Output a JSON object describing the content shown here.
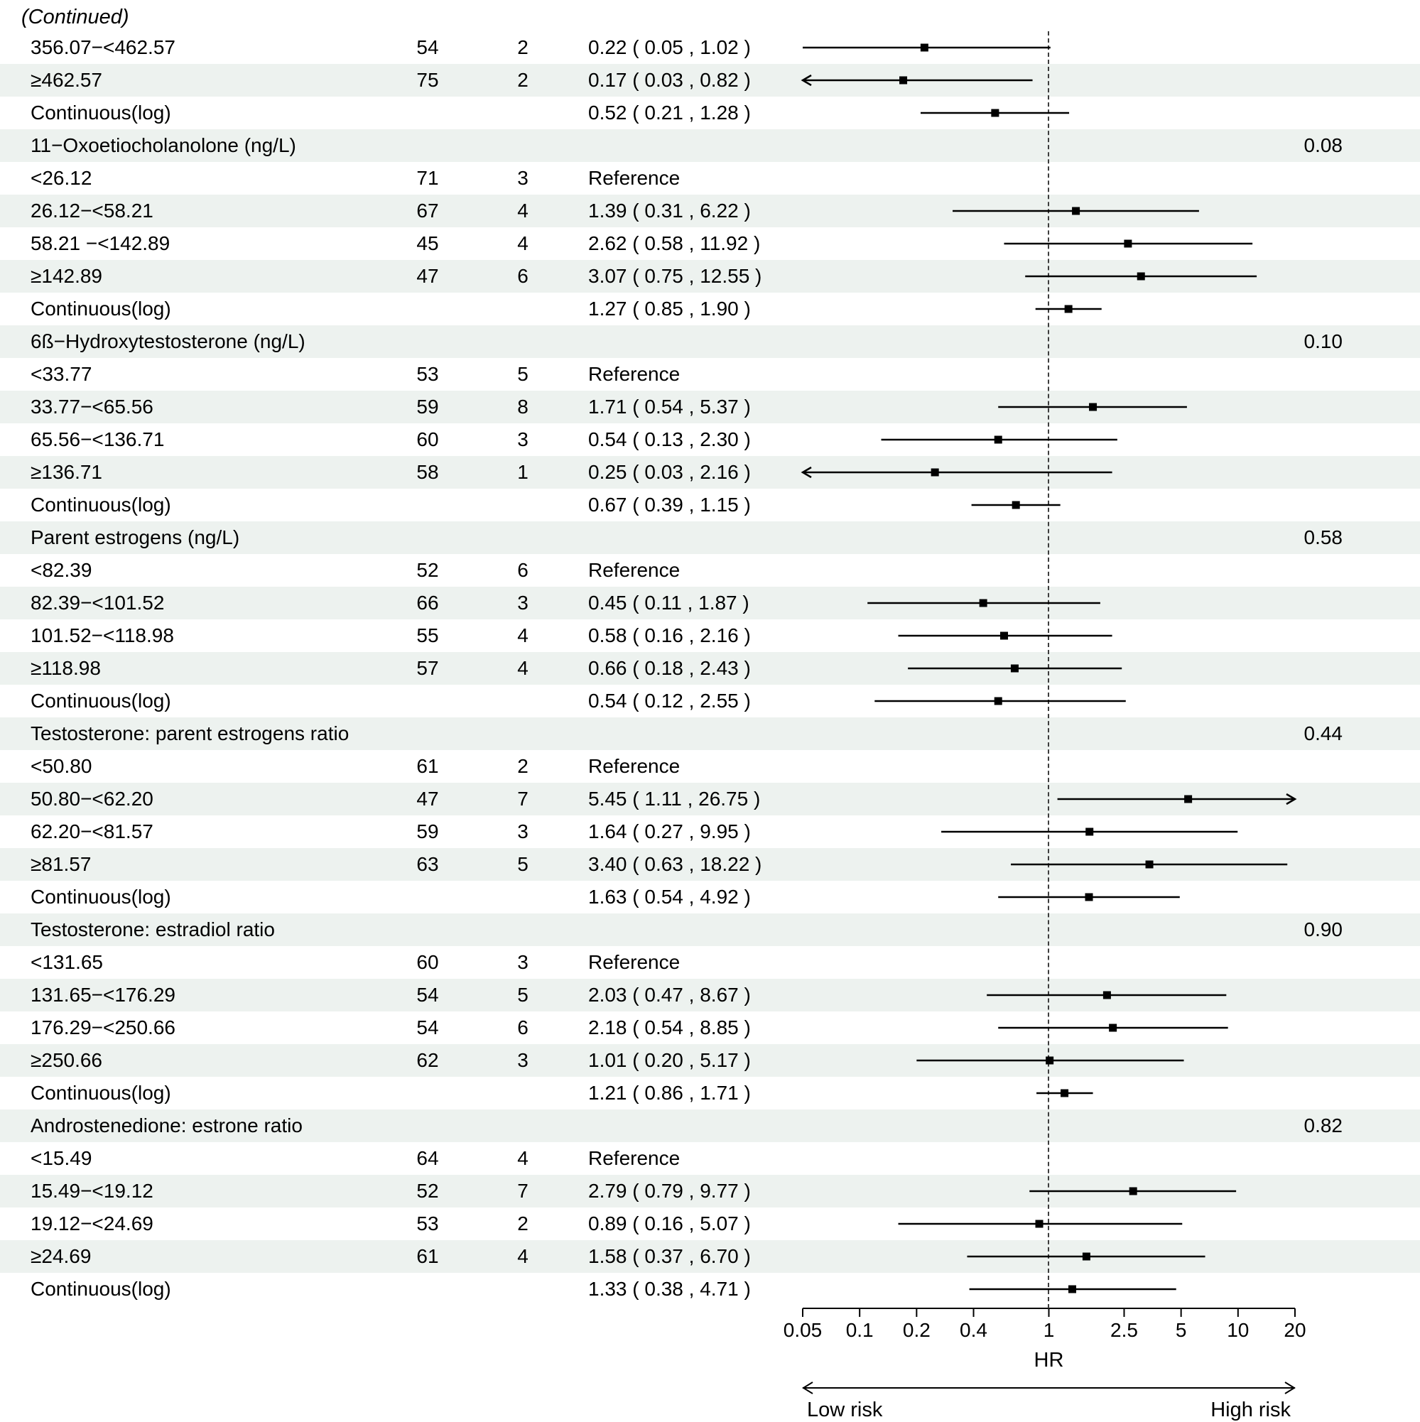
{
  "continued_label": "(Continued)",
  "colors": {
    "stripe": "#edf2ef",
    "marker": "#000000",
    "ci_line": "#000000",
    "reference_line": "#3d3d3d",
    "axis": "#000000"
  },
  "chart_data": {
    "type": "scatter",
    "subtype": "forest-plot-hazard-ratios",
    "title": "(Continued)",
    "xlabel": "HR",
    "xscale": "log",
    "xlim": [
      0.05,
      20
    ],
    "xticks": [
      0.05,
      0.1,
      0.2,
      0.4,
      1,
      2.5,
      5,
      10,
      20
    ],
    "xtick_labels": [
      "0.05",
      "0.1",
      "0.2",
      "0.4",
      "1",
      "2.5",
      "5",
      "10",
      "20"
    ],
    "reference_line": 1,
    "legend_position": "none",
    "grid": false,
    "axis_annotations": {
      "low": "Low risk",
      "high": "High risk"
    },
    "rows": [
      {
        "kind": "quartile",
        "label": "356.07−<462.57",
        "n": "54",
        "events": "2",
        "hr_label": "0.22 ( 0.05 , 1.02 )",
        "hr": 0.22,
        "ci": [
          0.05,
          1.02
        ]
      },
      {
        "kind": "quartile",
        "label": "≥462.57",
        "n": "75",
        "events": "2",
        "hr_label": "0.17 ( 0.03 , 0.82 )",
        "hr": 0.17,
        "ci": [
          0.03,
          0.82
        ]
      },
      {
        "kind": "continuous",
        "label": "Continuous(log)",
        "hr_label": "0.52 ( 0.21 , 1.28 )",
        "hr": 0.52,
        "ci": [
          0.21,
          1.28
        ]
      },
      {
        "kind": "group",
        "label": "11−Oxoetiocholanolone (ng/L)",
        "p": "0.08"
      },
      {
        "kind": "quartile",
        "label": "<26.12",
        "n": "71",
        "events": "3",
        "hr_label": "Reference"
      },
      {
        "kind": "quartile",
        "label": "26.12−<58.21",
        "n": "67",
        "events": "4",
        "hr_label": "1.39 ( 0.31 , 6.22 )",
        "hr": 1.39,
        "ci": [
          0.31,
          6.22
        ]
      },
      {
        "kind": "quartile",
        "label": "58.21 −<142.89",
        "n": "45",
        "events": "4",
        "hr_label": "2.62 ( 0.58 , 11.92 )",
        "hr": 2.62,
        "ci": [
          0.58,
          11.92
        ]
      },
      {
        "kind": "quartile",
        "label": "≥142.89",
        "n": "47",
        "events": "6",
        "hr_label": "3.07 ( 0.75 , 12.55 )",
        "hr": 3.07,
        "ci": [
          0.75,
          12.55
        ]
      },
      {
        "kind": "continuous",
        "label": "Continuous(log)",
        "hr_label": "1.27 ( 0.85 , 1.90 )",
        "hr": 1.27,
        "ci": [
          0.85,
          1.9
        ]
      },
      {
        "kind": "group",
        "label": "6ß−Hydroxytestosterone (ng/L)",
        "p": "0.10"
      },
      {
        "kind": "quartile",
        "label": "<33.77",
        "n": "53",
        "events": "5",
        "hr_label": "Reference"
      },
      {
        "kind": "quartile",
        "label": "33.77−<65.56",
        "n": "59",
        "events": "8",
        "hr_label": "1.71 ( 0.54 , 5.37 )",
        "hr": 1.71,
        "ci": [
          0.54,
          5.37
        ]
      },
      {
        "kind": "quartile",
        "label": "65.56−<136.71",
        "n": "60",
        "events": "3",
        "hr_label": "0.54 ( 0.13 , 2.30 )",
        "hr": 0.54,
        "ci": [
          0.13,
          2.3
        ]
      },
      {
        "kind": "quartile",
        "label": "≥136.71",
        "n": "58",
        "events": "1",
        "hr_label": "0.25 ( 0.03 , 2.16 )",
        "hr": 0.25,
        "ci": [
          0.03,
          2.16
        ]
      },
      {
        "kind": "continuous",
        "label": "Continuous(log)",
        "hr_label": "0.67 ( 0.39 , 1.15 )",
        "hr": 0.67,
        "ci": [
          0.39,
          1.15
        ]
      },
      {
        "kind": "group",
        "label": "Parent estrogens (ng/L)",
        "p": "0.58"
      },
      {
        "kind": "quartile",
        "label": "<82.39",
        "n": "52",
        "events": "6",
        "hr_label": "Reference"
      },
      {
        "kind": "quartile",
        "label": "82.39−<101.52",
        "n": "66",
        "events": "3",
        "hr_label": "0.45 ( 0.11 , 1.87 )",
        "hr": 0.45,
        "ci": [
          0.11,
          1.87
        ]
      },
      {
        "kind": "quartile",
        "label": "101.52−<118.98",
        "n": "55",
        "events": "4",
        "hr_label": "0.58 ( 0.16 , 2.16 )",
        "hr": 0.58,
        "ci": [
          0.16,
          2.16
        ]
      },
      {
        "kind": "quartile",
        "label": "≥118.98",
        "n": "57",
        "events": "4",
        "hr_label": "0.66 ( 0.18 , 2.43 )",
        "hr": 0.66,
        "ci": [
          0.18,
          2.43
        ]
      },
      {
        "kind": "continuous",
        "label": "Continuous(log)",
        "hr_label": "0.54 ( 0.12 , 2.55 )",
        "hr": 0.54,
        "ci": [
          0.12,
          2.55
        ]
      },
      {
        "kind": "group",
        "label": "Testosterone: parent estrogens ratio",
        "p": "0.44"
      },
      {
        "kind": "quartile",
        "label": "<50.80",
        "n": "61",
        "events": "2",
        "hr_label": "Reference"
      },
      {
        "kind": "quartile",
        "label": "50.80−<62.20",
        "n": "47",
        "events": "7",
        "hr_label": "5.45 ( 1.11 , 26.75 )",
        "hr": 5.45,
        "ci": [
          1.11,
          26.75
        ]
      },
      {
        "kind": "quartile",
        "label": "62.20−<81.57",
        "n": "59",
        "events": "3",
        "hr_label": "1.64 ( 0.27 , 9.95 )",
        "hr": 1.64,
        "ci": [
          0.27,
          9.95
        ]
      },
      {
        "kind": "quartile",
        "label": "≥81.57",
        "n": "63",
        "events": "5",
        "hr_label": "3.40 ( 0.63 , 18.22 )",
        "hr": 3.4,
        "ci": [
          0.63,
          18.22
        ]
      },
      {
        "kind": "continuous",
        "label": "Continuous(log)",
        "hr_label": "1.63 ( 0.54 , 4.92 )",
        "hr": 1.63,
        "ci": [
          0.54,
          4.92
        ]
      },
      {
        "kind": "group",
        "label": "Testosterone: estradiol ratio",
        "p": "0.90"
      },
      {
        "kind": "quartile",
        "label": "<131.65",
        "n": "60",
        "events": "3",
        "hr_label": "Reference"
      },
      {
        "kind": "quartile",
        "label": "131.65−<176.29",
        "n": "54",
        "events": "5",
        "hr_label": "2.03 ( 0.47 , 8.67 )",
        "hr": 2.03,
        "ci": [
          0.47,
          8.67
        ]
      },
      {
        "kind": "quartile",
        "label": "176.29−<250.66",
        "n": "54",
        "events": "6",
        "hr_label": "2.18 ( 0.54 , 8.85 )",
        "hr": 2.18,
        "ci": [
          0.54,
          8.85
        ]
      },
      {
        "kind": "quartile",
        "label": "≥250.66",
        "n": "62",
        "events": "3",
        "hr_label": "1.01 ( 0.20 , 5.17 )",
        "hr": 1.01,
        "ci": [
          0.2,
          5.17
        ]
      },
      {
        "kind": "continuous",
        "label": "Continuous(log)",
        "hr_label": "1.21 ( 0.86 , 1.71 )",
        "hr": 1.21,
        "ci": [
          0.86,
          1.71
        ]
      },
      {
        "kind": "group",
        "label": "Androstenedione: estrone ratio",
        "p": "0.82"
      },
      {
        "kind": "quartile",
        "label": "<15.49",
        "n": "64",
        "events": "4",
        "hr_label": "Reference"
      },
      {
        "kind": "quartile",
        "label": "15.49−<19.12",
        "n": "52",
        "events": "7",
        "hr_label": "2.79 ( 0.79 , 9.77 )",
        "hr": 2.79,
        "ci": [
          0.79,
          9.77
        ]
      },
      {
        "kind": "quartile",
        "label": "19.12−<24.69",
        "n": "53",
        "events": "2",
        "hr_label": "0.89 ( 0.16 , 5.07 )",
        "hr": 0.89,
        "ci": [
          0.16,
          5.07
        ]
      },
      {
        "kind": "quartile",
        "label": "≥24.69",
        "n": "61",
        "events": "4",
        "hr_label": "1.58 ( 0.37 , 6.70 )",
        "hr": 1.58,
        "ci": [
          0.37,
          6.7
        ]
      },
      {
        "kind": "continuous",
        "label": "Continuous(log)",
        "hr_label": "1.33 ( 0.38 , 4.71 )",
        "hr": 1.33,
        "ci": [
          0.38,
          4.71
        ]
      }
    ]
  }
}
